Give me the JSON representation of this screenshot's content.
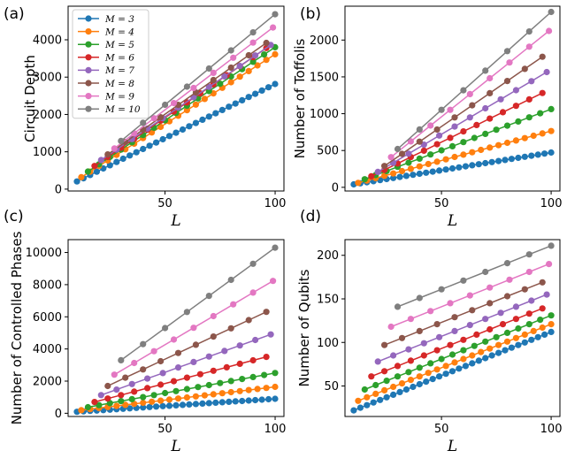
{
  "chart_data": [
    {
      "panel": "(a)",
      "type": "line",
      "title": "",
      "xlabel": "L",
      "ylabel": "Circuit Depth",
      "xlim": [
        6,
        104
      ],
      "ylim": [
        -50,
        4900
      ],
      "xticks": [
        50,
        100
      ],
      "yticks": [
        0,
        1000,
        2000,
        3000,
        4000
      ],
      "legend": {
        "position": "top-left"
      },
      "series": [
        {
          "name": "M = 3",
          "label": "𝑀 = 3",
          "color": "#1f77b4",
          "start": 10,
          "step": 3,
          "end": 100,
          "y0": 205,
          "slope": 29.0
        },
        {
          "name": "M = 4",
          "label": "𝑀 = 4",
          "color": "#ff7f0e",
          "start": 12,
          "step": 4,
          "end": 100,
          "y0": 320,
          "slope": 37.4
        },
        {
          "name": "M = 5",
          "label": "𝑀 = 5",
          "color": "#2ca02c",
          "start": 15,
          "step": 5,
          "end": 100,
          "y0": 470,
          "slope": 39.2
        },
        {
          "name": "M = 6",
          "label": "𝑀 = 6",
          "color": "#d62728",
          "start": 18,
          "step": 6,
          "end": 96,
          "y0": 620,
          "slope": 40.5
        },
        {
          "name": "M = 7",
          "label": "𝑀 = 7",
          "color": "#9467bd",
          "start": 21,
          "step": 7,
          "end": 98,
          "y0": 780,
          "slope": 40.0
        },
        {
          "name": "M = 8",
          "label": "𝑀 = 8",
          "color": "#8c564b",
          "start": 24,
          "step": 8,
          "end": 96,
          "y0": 930,
          "slope": 41.5
        },
        {
          "name": "M = 9",
          "label": "𝑀 = 9",
          "color": "#e377c2",
          "start": 27,
          "step": 9,
          "end": 99,
          "y0": 1090,
          "slope": 45.0
        },
        {
          "name": "M = 10",
          "label": "𝑀 = 10",
          "color": "#7f7f7f",
          "start": 30,
          "step": 10,
          "end": 100,
          "y0": 1290,
          "slope": 48.5
        }
      ]
    },
    {
      "panel": "(b)",
      "type": "line",
      "title": "",
      "xlabel": "L",
      "ylabel": "Number of Toffolis",
      "xlim": [
        6,
        104
      ],
      "ylim": [
        -50,
        2460
      ],
      "xticks": [
        50,
        100
      ],
      "yticks": [
        0,
        500,
        1000,
        1500,
        2000
      ],
      "series": [
        {
          "name": "M = 3",
          "color": "#1f77b4",
          "start": 10,
          "step": 3,
          "end": 100,
          "y0": 40,
          "slope": 4.8
        },
        {
          "name": "M = 4",
          "color": "#ff7f0e",
          "start": 12,
          "step": 4,
          "end": 100,
          "y0": 60,
          "slope": 8.0
        },
        {
          "name": "M = 5",
          "color": "#2ca02c",
          "start": 15,
          "step": 5,
          "end": 100,
          "y0": 110,
          "slope": 11.2
        },
        {
          "name": "M = 6",
          "color": "#d62728",
          "start": 18,
          "step": 6,
          "end": 96,
          "y0": 150,
          "slope": 14.5
        },
        {
          "name": "M = 7",
          "color": "#9467bd",
          "start": 21,
          "step": 7,
          "end": 98,
          "y0": 210,
          "slope": 17.6
        },
        {
          "name": "M = 8",
          "color": "#8c564b",
          "start": 24,
          "step": 8,
          "end": 96,
          "y0": 290,
          "slope": 20.6
        },
        {
          "name": "M = 9",
          "color": "#e377c2",
          "start": 27,
          "step": 9,
          "end": 99,
          "y0": 410,
          "slope": 23.8
        },
        {
          "name": "M = 10",
          "color": "#7f7f7f",
          "start": 30,
          "step": 10,
          "end": 100,
          "y0": 520,
          "slope": 26.6
        }
      ]
    },
    {
      "panel": "(c)",
      "type": "line",
      "title": "",
      "xlabel": "L",
      "ylabel": "Number of Controlled Phases",
      "xlim": [
        6,
        104
      ],
      "ylim": [
        -200,
        10800
      ],
      "xticks": [
        50,
        100
      ],
      "yticks": [
        0,
        2000,
        4000,
        6000,
        8000,
        10000
      ],
      "series": [
        {
          "name": "M = 3",
          "color": "#1f77b4",
          "start": 10,
          "step": 3,
          "end": 100,
          "y0": 90,
          "slope": 9.0
        },
        {
          "name": "M = 4",
          "color": "#ff7f0e",
          "start": 12,
          "step": 4,
          "end": 100,
          "y0": 190,
          "slope": 16.5
        },
        {
          "name": "M = 5",
          "color": "#2ca02c",
          "start": 15,
          "step": 5,
          "end": 100,
          "y0": 380,
          "slope": 25.0
        },
        {
          "name": "M = 6",
          "color": "#d62728",
          "start": 18,
          "step": 6,
          "end": 96,
          "y0": 700,
          "slope": 36.0
        },
        {
          "name": "M = 7",
          "color": "#9467bd",
          "start": 21,
          "step": 7,
          "end": 98,
          "y0": 1130,
          "slope": 49.0
        },
        {
          "name": "M = 8",
          "color": "#8c564b",
          "start": 24,
          "step": 8,
          "end": 96,
          "y0": 1700,
          "slope": 64.0
        },
        {
          "name": "M = 9",
          "color": "#e377c2",
          "start": 27,
          "step": 9,
          "end": 99,
          "y0": 2400,
          "slope": 81.0
        },
        {
          "name": "M = 10",
          "color": "#7f7f7f",
          "start": 30,
          "step": 10,
          "end": 100,
          "y0": 3300,
          "slope": 100.0
        }
      ]
    },
    {
      "panel": "(d)",
      "type": "line",
      "title": "",
      "xlabel": "L",
      "ylabel": "Number of Qubits",
      "xlim": [
        6,
        104
      ],
      "ylim": [
        15,
        218
      ],
      "xticks": [
        50,
        100
      ],
      "yticks": [
        50,
        100,
        150,
        200
      ],
      "series": [
        {
          "name": "M = 3",
          "color": "#1f77b4",
          "start": 10,
          "step": 3,
          "end": 100,
          "y0": 22,
          "slope": 1.0
        },
        {
          "name": "M = 4",
          "color": "#ff7f0e",
          "start": 12,
          "step": 4,
          "end": 100,
          "y0": 33,
          "slope": 1.0
        },
        {
          "name": "M = 5",
          "color": "#2ca02c",
          "start": 15,
          "step": 5,
          "end": 100,
          "y0": 46,
          "slope": 1.0
        },
        {
          "name": "M = 6",
          "color": "#d62728",
          "start": 18,
          "step": 6,
          "end": 96,
          "y0": 61,
          "slope": 1.0
        },
        {
          "name": "M = 7",
          "color": "#9467bd",
          "start": 21,
          "step": 7,
          "end": 98,
          "y0": 78,
          "slope": 1.0
        },
        {
          "name": "M = 8",
          "color": "#8c564b",
          "start": 24,
          "step": 8,
          "end": 96,
          "y0": 97,
          "slope": 1.0
        },
        {
          "name": "M = 9",
          "color": "#e377c2",
          "start": 27,
          "step": 9,
          "end": 99,
          "y0": 118,
          "slope": 1.0
        },
        {
          "name": "M = 10",
          "color": "#7f7f7f",
          "start": 30,
          "step": 10,
          "end": 100,
          "y0": 141,
          "slope": 1.0
        }
      ]
    }
  ]
}
